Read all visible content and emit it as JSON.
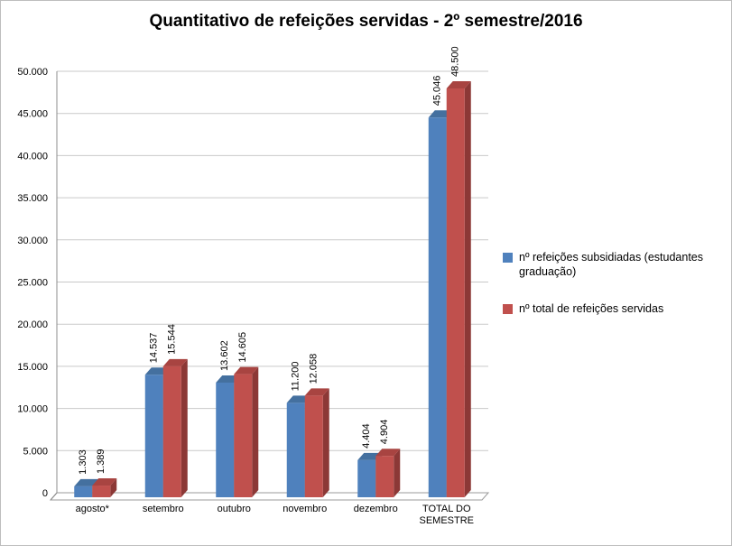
{
  "title": "Quantitativo de refeições servidas - 2º semestre/2016",
  "chart_data": {
    "type": "bar",
    "style": "3d-clustered-column",
    "categories": [
      "agosto*",
      "setembro",
      "outubro",
      "novembro",
      "dezembro",
      "TOTAL DO SEMESTRE"
    ],
    "series": [
      {
        "name": "nº refeições subsidiadas (estudantes graduação)",
        "color": "#4F81BD",
        "top_color": "#44709F",
        "side_color": "#355B84",
        "values": [
          1303,
          14537,
          13602,
          11200,
          4404,
          45046
        ],
        "labels": [
          "1.303",
          "14.537",
          "13.602",
          "11.200",
          "4.404",
          "45.046"
        ]
      },
      {
        "name": "nº total de refeições servidas",
        "color": "#C0504D",
        "top_color": "#A84441",
        "side_color": "#8C3836",
        "values": [
          1389,
          15544,
          14605,
          12058,
          4904,
          48500
        ],
        "labels": [
          "1.389",
          "15.544",
          "14.605",
          "12.058",
          "4.904",
          "48.500"
        ]
      }
    ],
    "y_axis": {
      "min": 0,
      "max": 50000,
      "step": 5000,
      "tick_labels": [
        "0",
        "5.000",
        "10.000",
        "15.000",
        "20.000",
        "25.000",
        "30.000",
        "35.000",
        "40.000",
        "45.000",
        "50.000"
      ]
    },
    "legend_position": "right",
    "grid": true
  }
}
